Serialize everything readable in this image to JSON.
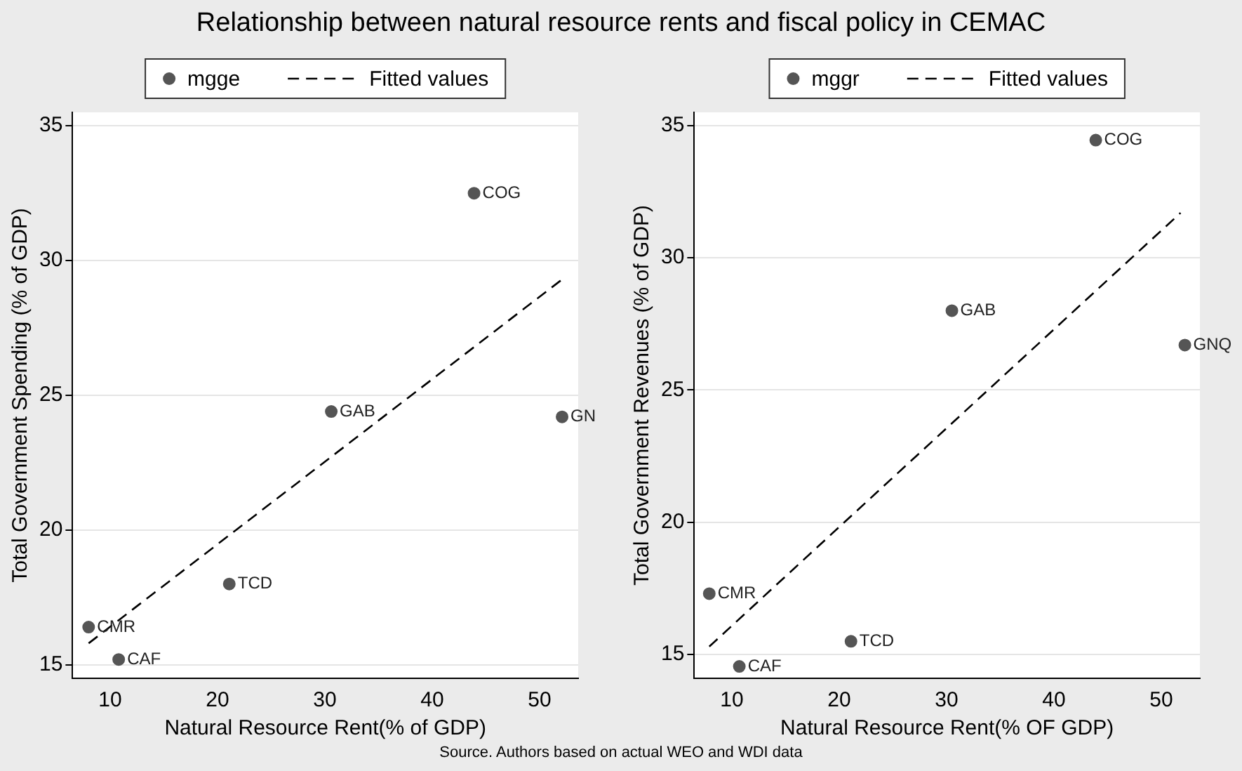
{
  "chart_data": [
    {
      "type": "scatter",
      "title": "Relationship between natural resource rents and fiscal policy in CEMAC",
      "xlabel": "Natural Resource Rent(% of GDP)",
      "ylabel": "Total Government Spending (% of GDP)",
      "xlim": [
        6.5,
        53.6
      ],
      "xticks": [
        10,
        20,
        30,
        40,
        50
      ],
      "ylim": [
        14.5,
        35.5
      ],
      "yticks": [
        15,
        20,
        25,
        30,
        35
      ],
      "grid": "y",
      "legend": "top",
      "marker": "circle",
      "series": [
        {
          "name": "mgge",
          "type": "scatter",
          "color": "#555555",
          "x": [
            43.9,
            30.6,
            52.1,
            21.1,
            8.0,
            10.8
          ],
          "values": [
            32.5,
            24.4,
            24.2,
            18.0,
            16.4,
            15.2
          ]
        },
        {
          "name": "Fitted values",
          "type": "line",
          "color": "#000000",
          "line_style": "dashed",
          "marker": "none",
          "x": [
            8.0,
            52.1
          ],
          "values": [
            15.8,
            29.3
          ]
        }
      ],
      "annotations": [
        {
          "text": "COG",
          "x": 43.9,
          "y": 32.5
        },
        {
          "text": "GAB",
          "x": 30.6,
          "y": 24.4
        },
        {
          "text": "GN",
          "x": 52.1,
          "y": 24.2
        },
        {
          "text": "TCD",
          "x": 21.1,
          "y": 18.0
        },
        {
          "text": "CMR",
          "x": 8.0,
          "y": 16.4
        },
        {
          "text": "CAF",
          "x": 10.8,
          "y": 15.2
        }
      ]
    },
    {
      "type": "scatter",
      "xlabel": "Natural Resource Rent(% OF GDP)",
      "ylabel": "Total Government Revenues (% of GDP)",
      "xlim": [
        6.5,
        53.6
      ],
      "xticks": [
        10,
        20,
        30,
        40,
        50
      ],
      "ylim": [
        14.1,
        35.5
      ],
      "yticks": [
        15,
        20,
        25,
        30,
        35
      ],
      "grid": "y",
      "legend": "top",
      "marker": "circle",
      "series": [
        {
          "name": "mggr",
          "type": "scatter",
          "color": "#555555",
          "x": [
            43.9,
            30.5,
            52.2,
            7.9,
            21.1,
            10.7
          ],
          "values": [
            34.45,
            28.0,
            26.7,
            17.3,
            15.5,
            14.55
          ]
        },
        {
          "name": "Fitted values",
          "type": "line",
          "color": "#000000",
          "line_style": "dashed",
          "marker": "none",
          "x": [
            7.9,
            51.8
          ],
          "values": [
            15.3,
            31.7
          ]
        }
      ],
      "annotations": [
        {
          "text": "COG",
          "x": 43.9,
          "y": 34.45
        },
        {
          "text": "GAB",
          "x": 30.5,
          "y": 28.0
        },
        {
          "text": "GNQ",
          "x": 52.2,
          "y": 26.7
        },
        {
          "text": "CMR",
          "x": 7.9,
          "y": 17.3
        },
        {
          "text": "TCD",
          "x": 21.1,
          "y": 15.5
        },
        {
          "text": "CAF",
          "x": 10.7,
          "y": 14.55
        },
        "Source. Authors based on actual WEO and WDI data"
      ]
    }
  ]
}
